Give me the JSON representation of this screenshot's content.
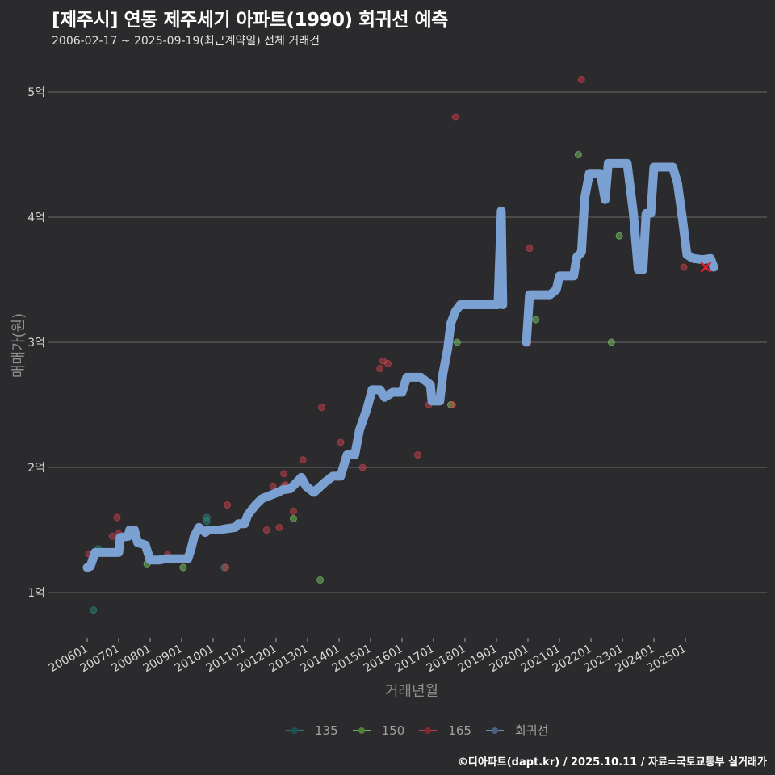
{
  "header": {
    "title": "[제주시] 연동 제주세기 아파트(1990) 회귀선 예측",
    "subtitle": "2006-02-17 ~ 2025-09-19(최근계약일) 전체 거래건"
  },
  "footer": {
    "caption": "©디아파트(dapt.kr) / 2025.10.11 / 자료=국토교통부 실거래가"
  },
  "colors": {
    "background": "#2b2a2c",
    "grid": "#6a6a6a",
    "s135": "#2a8a86",
    "s150": "#7fd36a",
    "s165": "#d9434f",
    "regression": "#7ba0d2",
    "latest_marker": "#e0202a"
  },
  "chart_data": {
    "type": "scatter",
    "title": "[제주시] 연동 제주세기 아파트(1990) 회귀선 예측",
    "subtitle": "2006-02-17 ~ 2025-09-19(최근계약일) 전체 거래건",
    "xlabel": "거래년월",
    "ylabel": "매매가(원)",
    "x_ticks": [
      "200601",
      "200701",
      "200801",
      "200901",
      "201001",
      "201101",
      "201201",
      "201301",
      "201401",
      "201501",
      "201601",
      "201701",
      "201801",
      "201901",
      "202001",
      "202101",
      "202201",
      "202301",
      "202401",
      "202501"
    ],
    "y_ticks": [
      {
        "value": 1,
        "label": "1억"
      },
      {
        "value": 2,
        "label": "2억"
      },
      {
        "value": 3,
        "label": "3억"
      },
      {
        "value": 4,
        "label": "4억"
      },
      {
        "value": 5,
        "label": "5억"
      }
    ],
    "xlim": [
      2006.0,
      2025.75
    ],
    "ylim": [
      0.6,
      5.3
    ],
    "legend": {
      "position": "bottom",
      "entries": [
        "135",
        "150",
        "165",
        "회귀선"
      ]
    },
    "series": [
      {
        "name": "135",
        "color": "#2a8a86",
        "points": [
          [
            2006.2,
            0.86
          ],
          [
            2006.35,
            1.35
          ],
          [
            2009.8,
            1.6
          ],
          [
            2009.8,
            1.57
          ],
          [
            2010.35,
            1.2
          ],
          [
            2017.5,
            3.1
          ]
        ]
      },
      {
        "name": "150",
        "color": "#7fd36a",
        "points": [
          [
            2007.9,
            1.23
          ],
          [
            2009.05,
            1.2
          ],
          [
            2012.55,
            1.59
          ],
          [
            2013.4,
            1.1
          ],
          [
            2017.55,
            2.5
          ],
          [
            2017.75,
            3.0
          ],
          [
            2020.25,
            3.18
          ],
          [
            2021.6,
            4.5
          ],
          [
            2022.65,
            3.0
          ],
          [
            2022.9,
            3.85
          ]
        ]
      },
      {
        "name": "165",
        "color": "#d9434f",
        "points": [
          [
            2006.05,
            1.31
          ],
          [
            2006.95,
            1.6
          ],
          [
            2006.8,
            1.45
          ],
          [
            2007.0,
            1.47
          ],
          [
            2008.55,
            1.3
          ],
          [
            2009.2,
            1.3
          ],
          [
            2010.4,
            1.2
          ],
          [
            2010.45,
            1.7
          ],
          [
            2011.7,
            1.5
          ],
          [
            2011.9,
            1.85
          ],
          [
            2012.1,
            1.52
          ],
          [
            2012.25,
            1.85
          ],
          [
            2012.25,
            1.95
          ],
          [
            2012.3,
            1.86
          ],
          [
            2012.85,
            2.06
          ],
          [
            2012.55,
            1.65
          ],
          [
            2013.45,
            2.48
          ],
          [
            2014.05,
            2.2
          ],
          [
            2014.75,
            2.0
          ],
          [
            2015.3,
            2.79
          ],
          [
            2015.4,
            2.85
          ],
          [
            2015.55,
            2.83
          ],
          [
            2016.5,
            2.1
          ],
          [
            2016.85,
            2.5
          ],
          [
            2017.6,
            2.5
          ],
          [
            2017.7,
            4.8
          ],
          [
            2020.0,
            3.0
          ],
          [
            2020.05,
            3.75
          ],
          [
            2021.7,
            5.1
          ],
          [
            2024.95,
            3.85
          ],
          [
            2024.95,
            3.6
          ]
        ]
      }
    ],
    "regression": {
      "name": "회귀선",
      "color": "#7ba0d2",
      "segments": [
        [
          [
            2006.0,
            1.2
          ],
          [
            2006.1,
            1.21
          ],
          [
            2006.25,
            1.32
          ],
          [
            2006.6,
            1.32
          ],
          [
            2007.0,
            1.32
          ],
          [
            2007.05,
            1.44
          ],
          [
            2007.3,
            1.45
          ],
          [
            2007.35,
            1.5
          ],
          [
            2007.5,
            1.5
          ],
          [
            2007.6,
            1.4
          ],
          [
            2007.85,
            1.38
          ],
          [
            2008.0,
            1.26
          ],
          [
            2008.3,
            1.26
          ],
          [
            2008.5,
            1.27
          ],
          [
            2008.8,
            1.27
          ],
          [
            2009.0,
            1.27
          ],
          [
            2009.2,
            1.27
          ],
          [
            2009.3,
            1.35
          ],
          [
            2009.4,
            1.45
          ],
          [
            2009.55,
            1.52
          ],
          [
            2009.75,
            1.48
          ],
          [
            2009.85,
            1.5
          ],
          [
            2010.2,
            1.5
          ],
          [
            2010.4,
            1.51
          ],
          [
            2010.7,
            1.52
          ],
          [
            2010.8,
            1.55
          ],
          [
            2011.0,
            1.55
          ],
          [
            2011.1,
            1.62
          ],
          [
            2011.35,
            1.7
          ],
          [
            2011.55,
            1.75
          ],
          [
            2011.75,
            1.77
          ],
          [
            2011.85,
            1.78
          ],
          [
            2012.05,
            1.8
          ],
          [
            2012.2,
            1.82
          ],
          [
            2012.45,
            1.83
          ],
          [
            2012.65,
            1.88
          ],
          [
            2012.8,
            1.92
          ],
          [
            2012.95,
            1.85
          ],
          [
            2013.2,
            1.8
          ],
          [
            2013.55,
            1.88
          ],
          [
            2013.8,
            1.93
          ],
          [
            2014.05,
            1.93
          ],
          [
            2014.25,
            2.1
          ],
          [
            2014.5,
            2.1
          ],
          [
            2014.65,
            2.3
          ],
          [
            2014.9,
            2.48
          ],
          [
            2015.05,
            2.62
          ],
          [
            2015.3,
            2.62
          ],
          [
            2015.45,
            2.56
          ],
          [
            2015.7,
            2.6
          ],
          [
            2016.0,
            2.6
          ],
          [
            2016.15,
            2.72
          ],
          [
            2016.6,
            2.72
          ],
          [
            2016.9,
            2.66
          ],
          [
            2016.95,
            2.53
          ],
          [
            2017.2,
            2.53
          ],
          [
            2017.3,
            2.75
          ],
          [
            2017.45,
            2.95
          ],
          [
            2017.55,
            3.15
          ],
          [
            2017.7,
            3.25
          ],
          [
            2017.85,
            3.3
          ],
          [
            2018.3,
            3.3
          ],
          [
            2018.8,
            3.3
          ],
          [
            2019.05,
            3.3
          ],
          [
            2019.15,
            4.05
          ],
          [
            2019.2,
            3.3
          ]
        ],
        [
          [
            2019.95,
            3.0
          ],
          [
            2020.05,
            3.38
          ],
          [
            2020.7,
            3.38
          ],
          [
            2020.9,
            3.42
          ],
          [
            2021.0,
            3.53
          ],
          [
            2021.45,
            3.53
          ],
          [
            2021.55,
            3.68
          ],
          [
            2021.7,
            3.72
          ],
          [
            2021.8,
            4.15
          ],
          [
            2021.95,
            4.35
          ],
          [
            2022.3,
            4.35
          ],
          [
            2022.45,
            4.14
          ],
          [
            2022.55,
            4.43
          ],
          [
            2023.15,
            4.43
          ],
          [
            2023.35,
            4.03
          ],
          [
            2023.5,
            3.58
          ],
          [
            2023.65,
            3.58
          ],
          [
            2023.75,
            4.03
          ],
          [
            2023.9,
            4.03
          ],
          [
            2024.0,
            4.4
          ],
          [
            2024.6,
            4.4
          ],
          [
            2024.75,
            4.27
          ],
          [
            2024.9,
            4.0
          ],
          [
            2025.05,
            3.7
          ],
          [
            2025.25,
            3.67
          ],
          [
            2025.55,
            3.66
          ],
          [
            2025.8,
            3.67
          ],
          [
            2025.9,
            3.6
          ]
        ]
      ]
    },
    "latest_marker": {
      "x": 2025.65,
      "y": 3.6,
      "shape": "x"
    }
  },
  "axis": {
    "xlabel": "거래년월",
    "ylabel": "매매가(원)"
  },
  "legend": {
    "items": [
      {
        "label": "135",
        "color": "#2a8a86"
      },
      {
        "label": "150",
        "color": "#7fd36a"
      },
      {
        "label": "165",
        "color": "#d9434f"
      },
      {
        "label": "회귀선",
        "color": "#7ba0d2"
      }
    ]
  }
}
